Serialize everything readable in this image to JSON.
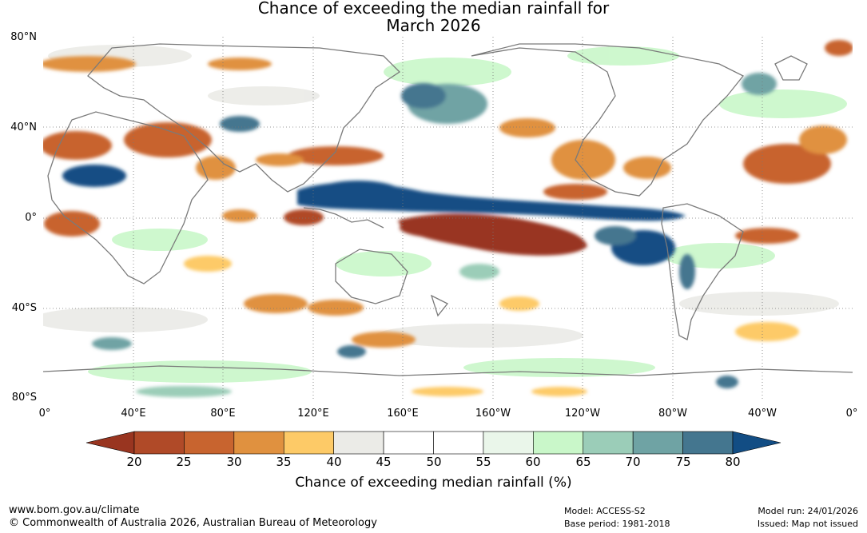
{
  "title": {
    "line1": "Chance of exceeding the median rainfall for",
    "line2": "March 2026"
  },
  "map": {
    "lat_labels": [
      "80°N",
      "40°N",
      "0°",
      "40°S",
      "80°S"
    ],
    "lon_labels": [
      "0°",
      "40°E",
      "80°E",
      "120°E",
      "160°E",
      "160°W",
      "120°W",
      "80°W",
      "40°W",
      "0°"
    ],
    "colors": {
      "coastline": "#7a7a7a",
      "grid": "#777777",
      "neutral": "#ffffff"
    }
  },
  "colorbar": {
    "ticks": [
      "20",
      "25",
      "30",
      "35",
      "40",
      "45",
      "50",
      "55",
      "60",
      "65",
      "70",
      "75",
      "80"
    ],
    "colors": [
      "#993520",
      "#b04a28",
      "#c8642f",
      "#e0913f",
      "#fdca67",
      "#ebebe7",
      "#ffffff",
      "#ffffff",
      "#eaf6ea",
      "#c9f7c9",
      "#9bcdb8",
      "#6fa3a4",
      "#44768f",
      "#124d84"
    ],
    "label": "Chance of exceeding median rainfall (%)"
  },
  "footer": {
    "website": "www.bom.gov.au/climate",
    "copyright": "© Commonwealth of Australia 2026, Australian Bureau of Meteorology",
    "model": "Model: ACCESS-S2",
    "base_period": "Base period: 1981-2018",
    "model_run": "Model run: 24/01/2026",
    "issued": "Issued: Map not issued"
  }
}
